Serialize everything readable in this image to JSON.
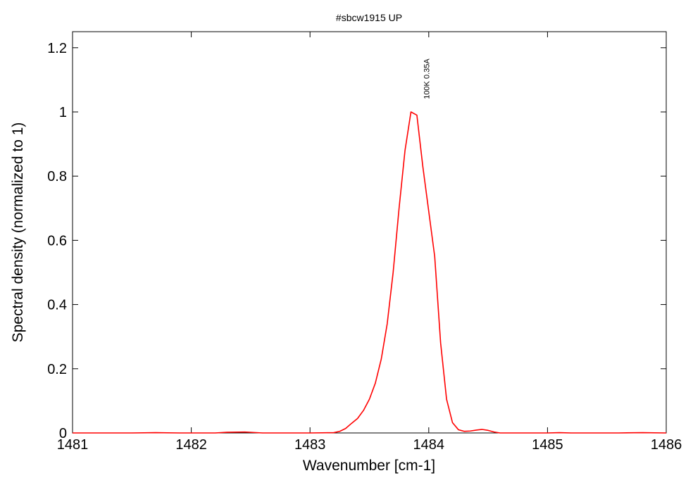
{
  "chart_data": {
    "type": "line",
    "title": "#sbcw1915 UP",
    "xlabel": "Wavenumber [cm-1]",
    "ylabel": "Spectral density (normalized to 1)",
    "xlim": [
      1481,
      1486
    ],
    "ylim": [
      0,
      1.25
    ],
    "xticks": [
      "1481",
      "1482",
      "1483",
      "1484",
      "1485",
      "1486"
    ],
    "yticks": [
      "0",
      "0.2",
      "0.4",
      "0.6",
      "0.8",
      "1",
      "1.2"
    ],
    "grid": false,
    "annotation": {
      "text": "100K 0.35A",
      "x": 1483.98,
      "y": 1.04
    },
    "series": [
      {
        "color": "#ff0000",
        "x": [
          1481.0,
          1481.1,
          1481.2,
          1481.5,
          1481.7,
          1481.9,
          1482.2,
          1482.3,
          1482.45,
          1482.6,
          1482.8,
          1483.0,
          1483.2,
          1483.25,
          1483.3,
          1483.35,
          1483.4,
          1483.45,
          1483.5,
          1483.55,
          1483.6,
          1483.65,
          1483.7,
          1483.75,
          1483.8,
          1483.85,
          1483.9,
          1483.95,
          1484.05,
          1484.1,
          1484.15,
          1484.2,
          1484.25,
          1484.3,
          1484.35,
          1484.4,
          1484.45,
          1484.5,
          1484.55,
          1484.6,
          1484.65,
          1484.7,
          1484.8,
          1485.0,
          1485.1,
          1485.2,
          1485.3,
          1485.6,
          1485.8,
          1486.0
        ],
        "y": [
          0.0,
          0.0,
          0.0,
          0.0,
          0.001,
          0.0,
          0.0,
          0.002,
          0.003,
          0.0,
          0.0,
          0.0,
          0.001,
          0.005,
          0.014,
          0.03,
          0.045,
          0.07,
          0.105,
          0.155,
          0.23,
          0.34,
          0.5,
          0.7,
          0.88,
          1.0,
          0.99,
          0.83,
          0.55,
          0.28,
          0.105,
          0.032,
          0.01,
          0.005,
          0.006,
          0.009,
          0.011,
          0.008,
          0.003,
          0.0,
          0.0,
          0.0,
          0.0,
          0.0,
          0.001,
          0.0,
          0.0,
          0.0,
          0.001,
          0.0
        ]
      }
    ]
  }
}
